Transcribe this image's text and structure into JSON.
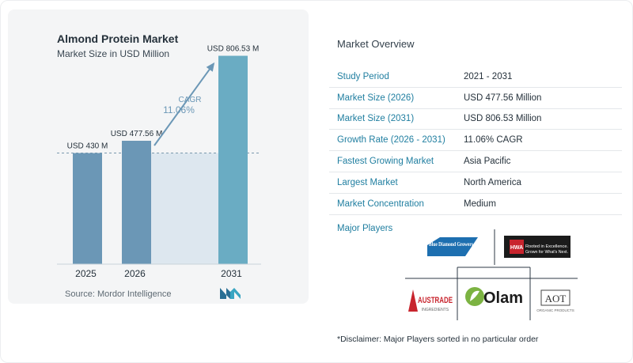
{
  "chart_data": {
    "type": "bar",
    "title": "Almond Protein Market",
    "subtitle": "Market Size in USD Million",
    "categories": [
      "2025",
      "2026",
      "2031"
    ],
    "values": [
      430,
      477.56,
      806.53
    ],
    "data_labels": [
      "USD 430 M",
      "USD 477.56 M",
      "USD 806.53 M"
    ],
    "cagr_label": "CAGR",
    "cagr_value": "11.06%",
    "bar_color": "#6b97b6",
    "last_bar_color": "#6aacc3",
    "reference_line": "dashed at 2025 value",
    "ylim": [
      0,
      900
    ]
  },
  "source": "Source:  Mordor Intelligence",
  "overview": {
    "title": "Market Overview",
    "rows": [
      {
        "key": "Study Period",
        "value": "2021 - 2031"
      },
      {
        "key": "Market Size (2026)",
        "value": "USD 477.56 Million"
      },
      {
        "key": "Market Size (2031)",
        "value": "USD 806.53 Million"
      },
      {
        "key": "Growth Rate (2026 - 2031)",
        "value": "11.06% CAGR"
      },
      {
        "key": "Fastest Growing Market",
        "value": "Asia Pacific"
      },
      {
        "key": "Largest Market",
        "value": "North America"
      },
      {
        "key": "Market Concentration",
        "value": "Medium"
      }
    ]
  },
  "major_players": {
    "title": "Major Players",
    "logos": [
      "Blue Diamond Growers",
      "HWA Rooted in Excellence. Grown for What's Next.",
      "AUSTRADE INGREDIENTS",
      "Olam",
      "AOT ORGANIC PRODUCTS"
    ]
  },
  "disclaimer": "*Disclaimer: Major Players sorted in no particular order"
}
